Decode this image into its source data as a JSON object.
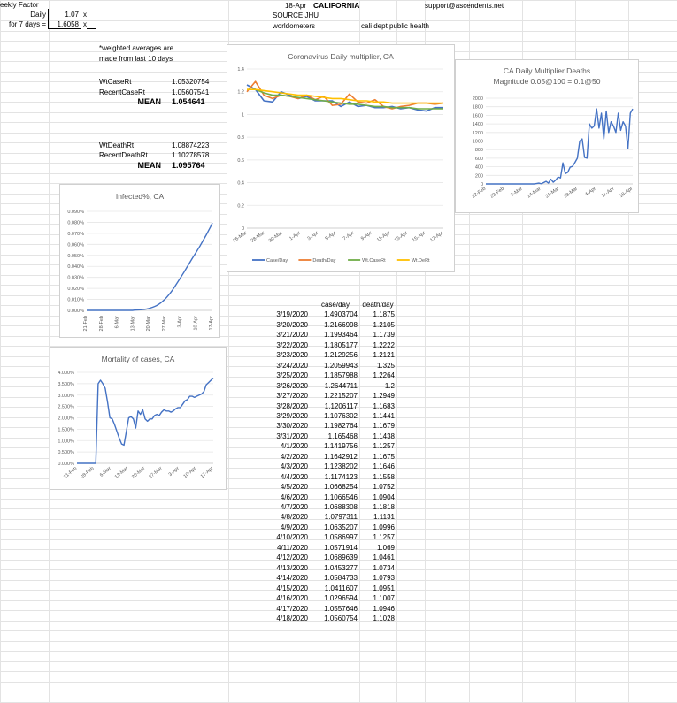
{
  "header": {
    "weekly_factor_label": "eekly Factor",
    "daily_label": "Daily",
    "daily_value": "1.07",
    "daily_unit": "x",
    "seven_day_label": "for 7 days =",
    "seven_day_value": "1.6058",
    "seven_day_unit": "x",
    "date": "18-Apr",
    "state": "CALIFORNIA",
    "email": "support@ascendents.net",
    "source1": "SOURCE JHU",
    "source2": "worldometers",
    "source3": "cali dept public health"
  },
  "notes": {
    "line1": "*weighted averages are",
    "line2": "made from last 10 days"
  },
  "rates": {
    "wt_case_label": "WtCaseRt",
    "wt_case_value": "1.05320754",
    "recent_case_label": "RecentCaseRt",
    "recent_case_value": "1.05607541",
    "case_mean_label": "MEAN",
    "case_mean_value": "1.054641",
    "wt_death_label": "WtDeathRt",
    "wt_death_value": "1.08874223",
    "recent_death_label": "RecentDeathRt",
    "recent_death_value": "1.10278578",
    "death_mean_label": "MEAN",
    "death_mean_value": "1.095764"
  },
  "table": {
    "headers": [
      "case/day",
      "death/day"
    ],
    "rows": [
      [
        "3/19/2020",
        "1.4903704",
        "1.1875"
      ],
      [
        "3/20/2020",
        "1.2166998",
        "1.2105"
      ],
      [
        "3/21/2020",
        "1.1993464",
        "1.1739"
      ],
      [
        "3/22/2020",
        "1.1805177",
        "1.2222"
      ],
      [
        "3/23/2020",
        "1.2129256",
        "1.2121"
      ],
      [
        "3/24/2020",
        "1.2059943",
        "1.325"
      ],
      [
        "3/25/2020",
        "1.1857988",
        "1.2264"
      ],
      [
        "3/26/2020",
        "1.2644711",
        "1.2"
      ],
      [
        "3/27/2020",
        "1.2215207",
        "1.2949"
      ],
      [
        "3/28/2020",
        "1.1206117",
        "1.1683"
      ],
      [
        "3/29/2020",
        "1.1076302",
        "1.1441"
      ],
      [
        "3/30/2020",
        "1.1982764",
        "1.1679"
      ],
      [
        "3/31/2020",
        "1.165468",
        "1.1438"
      ],
      [
        "4/1/2020",
        "1.1419756",
        "1.1257"
      ],
      [
        "4/2/2020",
        "1.1642912",
        "1.1675"
      ],
      [
        "4/3/2020",
        "1.1238202",
        "1.1646"
      ],
      [
        "4/4/2020",
        "1.1174123",
        "1.1558"
      ],
      [
        "4/5/2020",
        "1.0668254",
        "1.0752"
      ],
      [
        "4/6/2020",
        "1.1066546",
        "1.0904"
      ],
      [
        "4/7/2020",
        "1.0688308",
        "1.1818"
      ],
      [
        "4/8/2020",
        "1.0797311",
        "1.1131"
      ],
      [
        "4/9/2020",
        "1.0635207",
        "1.0996"
      ],
      [
        "4/10/2020",
        "1.0586997",
        "1.1257"
      ],
      [
        "4/11/2020",
        "1.0571914",
        "1.069"
      ],
      [
        "4/12/2020",
        "1.0689639",
        "1.0461"
      ],
      [
        "4/13/2020",
        "1.0453277",
        "1.0734"
      ],
      [
        "4/14/2020",
        "1.0584733",
        "1.0793"
      ],
      [
        "4/15/2020",
        "1.0411607",
        "1.0951"
      ],
      [
        "4/16/2020",
        "1.0296594",
        "1.1007"
      ],
      [
        "4/17/2020",
        "1.0557646",
        "1.0946"
      ],
      [
        "4/18/2020",
        "1.0560754",
        "1.1028"
      ]
    ]
  },
  "chart_data": [
    {
      "id": "multiplier",
      "type": "line",
      "title": "Coronavirus Daily multiplier, CA",
      "ylim": [
        0,
        1.4
      ],
      "yticks": [
        "0",
        "0.2",
        "0.4",
        "0.6",
        "0.8",
        "1",
        "1.2",
        "1.4"
      ],
      "x_tick_labels": [
        "26-Mar",
        "28-Mar",
        "30-Mar",
        "1-Apr",
        "3-Apr",
        "5-Apr",
        "7-Apr",
        "9-Apr",
        "11-Apr",
        "13-Apr",
        "15-Apr",
        "17-Apr"
      ],
      "legend_position": "bottom",
      "series": [
        {
          "name": "Case/Day",
          "color": "#4472c4",
          "values": [
            1.26,
            1.22,
            1.12,
            1.11,
            1.2,
            1.17,
            1.14,
            1.16,
            1.12,
            1.12,
            1.12,
            1.07,
            1.11,
            1.07,
            1.08,
            1.06,
            1.06,
            1.07,
            1.05,
            1.06,
            1.04,
            1.03,
            1.06,
            1.06
          ]
        },
        {
          "name": "Death/Day",
          "color": "#ed7d31",
          "values": [
            1.2,
            1.29,
            1.17,
            1.14,
            1.17,
            1.16,
            1.14,
            1.17,
            1.13,
            1.16,
            1.08,
            1.09,
            1.18,
            1.11,
            1.1,
            1.13,
            1.07,
            1.05,
            1.07,
            1.08,
            1.1,
            1.1,
            1.09,
            1.1
          ]
        },
        {
          "name": "Wt.CaseRt",
          "color": "#70ad47",
          "values": [
            1.22,
            1.22,
            1.19,
            1.17,
            1.17,
            1.16,
            1.15,
            1.14,
            1.13,
            1.12,
            1.11,
            1.1,
            1.09,
            1.09,
            1.08,
            1.07,
            1.07,
            1.06,
            1.06,
            1.06,
            1.05,
            1.05,
            1.05,
            1.05
          ]
        },
        {
          "name": "Wt.DeRt",
          "color": "#ffc000",
          "values": [
            1.22,
            1.22,
            1.21,
            1.2,
            1.19,
            1.18,
            1.17,
            1.17,
            1.16,
            1.15,
            1.14,
            1.14,
            1.13,
            1.12,
            1.12,
            1.11,
            1.11,
            1.1,
            1.1,
            1.1,
            1.1,
            1.1,
            1.1,
            1.1
          ]
        }
      ]
    },
    {
      "id": "deaths_multiplier",
      "type": "line",
      "title": "CA Daily Multiplier Deaths",
      "subtitle": "Magnitude 0.05@100 = 0.1@50",
      "ylim": [
        0,
        2000
      ],
      "yticks": [
        "0",
        "200",
        "400",
        "600",
        "800",
        "1000",
        "1200",
        "1400",
        "1600",
        "1800",
        "2000"
      ],
      "x_tick_labels": [
        "22-Feb",
        "29-Feb",
        "7-Mar",
        "14-Mar",
        "21-Mar",
        "28-Mar",
        "4-Apr",
        "11-Apr",
        "18-Apr"
      ],
      "series": [
        {
          "name": "",
          "color": "#4472c4",
          "values": [
            0,
            0,
            0,
            0,
            0,
            0,
            0,
            0,
            0,
            0,
            0,
            0,
            0,
            0,
            0,
            0,
            0,
            0,
            0,
            0,
            0,
            10,
            20,
            5,
            30,
            60,
            20,
            110,
            40,
            90,
            160,
            140,
            490,
            240,
            270,
            390,
            410,
            500,
            600,
            1000,
            1050,
            620,
            600,
            1400,
            1300,
            1350,
            1750,
            1300,
            1650,
            1050,
            1700,
            1200,
            1450,
            1350,
            1200,
            1650,
            1250,
            1450,
            1350,
            820,
            1650,
            1750
          ]
        }
      ]
    },
    {
      "id": "infected",
      "type": "line",
      "title": "Infected%, CA",
      "ylim": [
        0,
        0.09
      ],
      "yticks": [
        "0.000%",
        "0.010%",
        "0.020%",
        "0.030%",
        "0.040%",
        "0.050%",
        "0.060%",
        "0.070%",
        "0.080%",
        "0.090%"
      ],
      "x_tick_labels": [
        "21-Feb",
        "28-Feb",
        "6-Mar",
        "13-Mar",
        "20-Mar",
        "27-Mar",
        "3-Apr",
        "10-Apr",
        "17-Apr"
      ],
      "series": [
        {
          "name": "",
          "color": "#4472c4",
          "values": [
            0,
            0,
            0,
            0,
            0,
            0,
            0,
            0,
            0,
            0,
            0,
            0,
            0,
            0,
            0,
            0,
            0,
            0,
            0,
            0,
            0,
            0,
            0,
            0,
            0.0003,
            0.0004,
            0.0005,
            0.0006,
            0.0008,
            0.001,
            0.0013,
            0.0017,
            0.0022,
            0.0028,
            0.0035,
            0.0043,
            0.0054,
            0.0067,
            0.0082,
            0.0098,
            0.0117,
            0.0138,
            0.016,
            0.0185,
            0.0212,
            0.024,
            0.0268,
            0.0296,
            0.0325,
            0.0354,
            0.0385,
            0.0415,
            0.0445,
            0.0475,
            0.0503,
            0.0532,
            0.0562,
            0.0592,
            0.0624,
            0.0656,
            0.0688,
            0.0723,
            0.0757,
            0.0795
          ]
        }
      ]
    },
    {
      "id": "mortality",
      "type": "line",
      "title": "Mortality of cases, CA",
      "ylim": [
        0,
        4.0
      ],
      "yticks": [
        "0.000%",
        "0.500%",
        "1.000%",
        "1.500%",
        "2.000%",
        "2.500%",
        "3.000%",
        "3.500%",
        "4.000%"
      ],
      "x_tick_labels": [
        "21-Feb",
        "28-Feb",
        "6-Mar",
        "13-Mar",
        "20-Mar",
        "27-Mar",
        "3-Apr",
        "10-Apr",
        "17-Apr"
      ],
      "series": [
        {
          "name": "",
          "color": "#4472c4",
          "values": [
            0,
            0,
            0,
            0,
            0,
            0,
            0,
            0,
            0,
            3.5,
            3.65,
            3.5,
            3.3,
            2.7,
            2.0,
            1.95,
            1.7,
            1.4,
            1.1,
            0.85,
            0.8,
            1.4,
            2.0,
            2.05,
            1.95,
            1.55,
            2.3,
            2.15,
            2.35,
            1.95,
            1.85,
            1.95,
            1.95,
            2.1,
            2.15,
            2.1,
            2.25,
            2.35,
            2.3,
            2.3,
            2.25,
            2.3,
            2.4,
            2.45,
            2.45,
            2.6,
            2.75,
            2.8,
            2.95,
            2.95,
            2.9,
            2.95,
            3.0,
            3.05,
            3.15,
            3.45,
            3.55,
            3.65,
            3.75
          ]
        }
      ]
    }
  ]
}
